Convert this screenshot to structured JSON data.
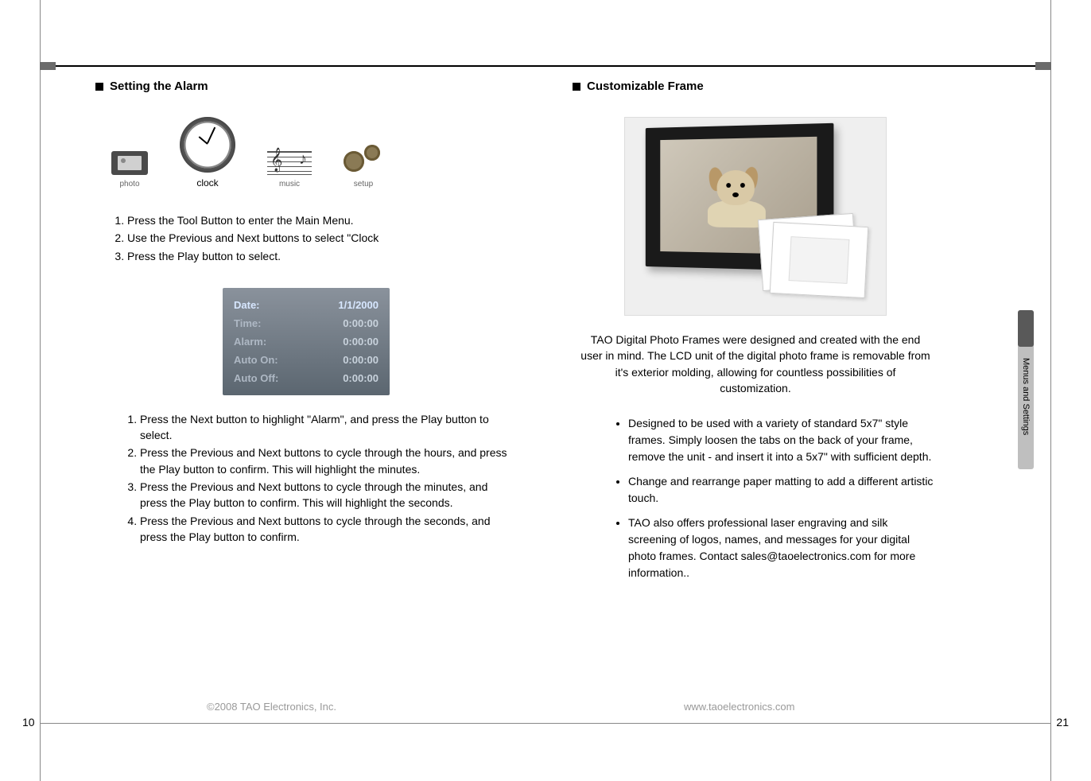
{
  "side_tab": "Menus and Settings",
  "page_left": "10",
  "page_right": "21",
  "footer_left": "©2008 TAO Electronics, Inc.",
  "footer_right": "www.taoelectronics.com",
  "left": {
    "heading": "Setting the Alarm",
    "icons": {
      "photo": "photo",
      "clock": "clock",
      "music": "music",
      "setup": "setup"
    },
    "steps1": [
      "Press the Tool Button to enter the Main Menu.",
      "Use the Previous and Next buttons to select \"Clock",
      "Press the Play button to select."
    ],
    "settings": [
      {
        "k": "Date:",
        "v": "1/1/2000"
      },
      {
        "k": "Time:",
        "v": "0:00:00"
      },
      {
        "k": "Alarm:",
        "v": "0:00:00"
      },
      {
        "k": "Auto On:",
        "v": "0:00:00"
      },
      {
        "k": "Auto Off:",
        "v": "0:00:00"
      }
    ],
    "steps2": [
      "Press the Next button to highlight \"Alarm\", and press the Play button to select.",
      "Press the Previous and Next buttons to cycle through the hours, and press the Play button to confirm.  This will highlight the minutes.",
      "Press the Previous and Next buttons to cycle through the minutes, and press the Play button to confirm.  This will highlight the seconds.",
      "Press the Previous and Next buttons to cycle through the seconds, and press the Play button to confirm."
    ]
  },
  "right": {
    "heading": "Customizable Frame",
    "para": "TAO Digital Photo Frames were designed and created with the end user in mind.  The LCD unit of the digital photo frame is removable from it's exterior molding, allowing for countless possibilities of customization.",
    "bullets": [
      "Designed to be used with a variety of standard 5x7\" style frames.  Simply loosen the tabs on the back of your frame, remove the unit  -   and insert it into a 5x7\" with sufficient depth.",
      "Change and rearrange paper matting to add a different artistic touch.",
      "TAO also offers professional laser engraving and silk screening of logos, names, and messages for your digital photo frames.  Contact sales@taoelectronics.com for more information.."
    ]
  },
  "colors": {
    "rule": "#000000",
    "footer": "#999999",
    "settings_bg_top": "#8a929c",
    "settings_bg_bot": "#5b6670",
    "settings_text_hl": "#d7e7ff",
    "settings_text": "#aeb8c4"
  }
}
